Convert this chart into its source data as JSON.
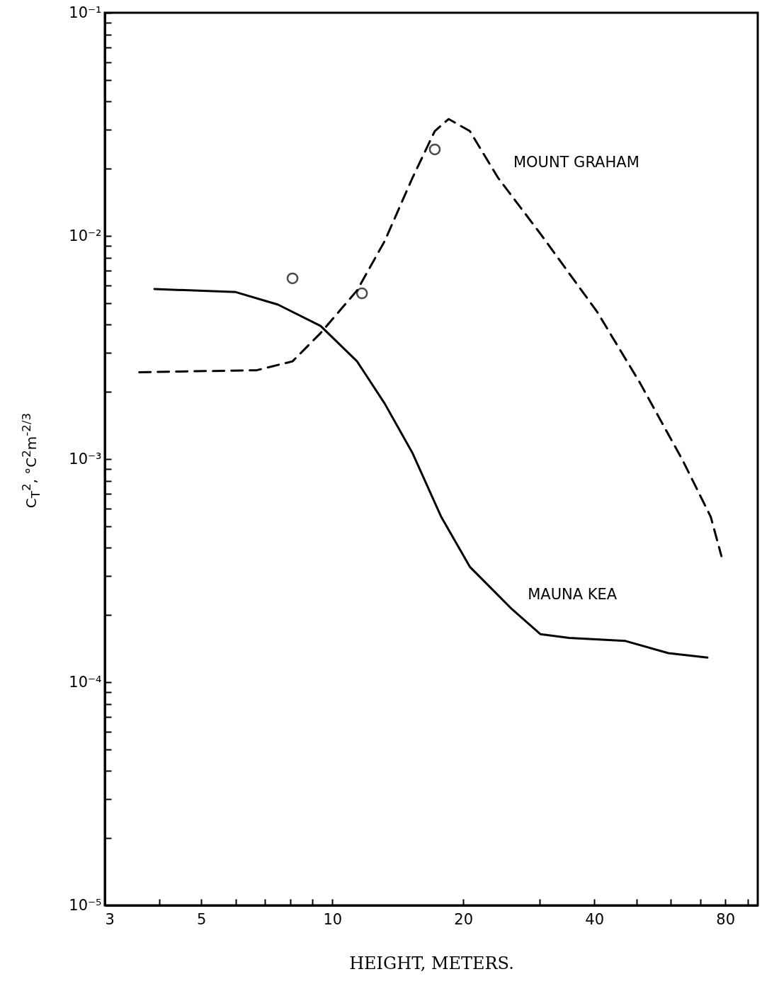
{
  "chart_data": {
    "type": "line",
    "xlabel": "HEIGHT, METERS.",
    "ylabel": "C$_{T}$$^{2}$, °C$^{2}$m$^{-2/3}$",
    "log": "xy",
    "xlim": [
      3,
      95
    ],
    "ylim": [
      1e-05,
      0.1
    ],
    "xticks": [
      3,
      {
        "value": 4,
        "label": null
      },
      5,
      {
        "value": 6,
        "label": null
      },
      {
        "value": 7,
        "label": null
      },
      {
        "value": 8,
        "label": null
      },
      {
        "value": 9,
        "label": null
      },
      10,
      20,
      {
        "value": 30,
        "label": null
      },
      40,
      {
        "value": 50,
        "label": null
      },
      {
        "value": 60,
        "label": null
      },
      {
        "value": 70,
        "label": null
      },
      80,
      {
        "value": 90,
        "label": null
      }
    ],
    "yticks": [
      {
        "value": 1e-05,
        "label": "10⁻⁵"
      },
      {
        "value": 2e-05,
        "label": null
      },
      {
        "value": 3e-05,
        "label": null
      },
      {
        "value": 4e-05,
        "label": null
      },
      {
        "value": 5e-05,
        "label": null
      },
      {
        "value": 6e-05,
        "label": null
      },
      {
        "value": 7e-05,
        "label": null
      },
      {
        "value": 8e-05,
        "label": null
      },
      {
        "value": 9e-05,
        "label": null
      },
      {
        "value": 0.0001,
        "label": "10⁻⁴"
      },
      {
        "value": 0.0002,
        "label": null
      },
      {
        "value": 0.0003,
        "label": null
      },
      {
        "value": 0.0004,
        "label": null
      },
      {
        "value": 0.0005,
        "label": null
      },
      {
        "value": 0.0006,
        "label": null
      },
      {
        "value": 0.0007,
        "label": null
      },
      {
        "value": 0.0008,
        "label": null
      },
      {
        "value": 0.0009,
        "label": null
      },
      {
        "value": 0.001,
        "label": "10⁻³"
      },
      {
        "value": 0.002,
        "label": null
      },
      {
        "value": 0.003,
        "label": null
      },
      {
        "value": 0.004,
        "label": null
      },
      {
        "value": 0.005,
        "label": null
      },
      {
        "value": 0.006,
        "label": null
      },
      {
        "value": 0.007,
        "label": null
      },
      {
        "value": 0.008,
        "label": null
      },
      {
        "value": 0.009,
        "label": null
      },
      {
        "value": 0.01,
        "label": "10⁻²"
      },
      {
        "value": 0.02,
        "label": null
      },
      {
        "value": 0.03,
        "label": null
      },
      {
        "value": 0.04,
        "label": null
      },
      {
        "value": 0.05,
        "label": null
      },
      {
        "value": 0.06,
        "label": null
      },
      {
        "value": 0.07,
        "label": null
      },
      {
        "value": 0.08,
        "label": null
      },
      {
        "value": 0.09,
        "label": null
      },
      {
        "value": 0.1,
        "label": "10⁻¹"
      }
    ],
    "series": [
      {
        "name": "MAUNA KEA",
        "line_style": "solid",
        "color": "#000000",
        "x": [
          3.9,
          6.0,
          7.5,
          9.4,
          11.4,
          13.2,
          15.3,
          17.8,
          20.7,
          25.9,
          30.1,
          35.0,
          47.2,
          59.2,
          72.8
        ],
        "values": [
          0.00578,
          0.0056,
          0.00492,
          0.00395,
          0.00274,
          0.00177,
          0.00106,
          0.00055,
          0.000329,
          0.000212,
          0.000164,
          0.000158,
          0.000153,
          0.000135,
          0.000129
        ]
      },
      {
        "name": "MOUNT GRAHAM",
        "line_style": "dashed",
        "color": "#000000",
        "x": [
          3.6,
          6.7,
          8.1,
          9.4,
          11.4,
          13.2,
          15.3,
          17.2,
          18.5,
          20.7,
          24.0,
          30.1,
          40.6,
          50.9,
          63.8,
          74.1,
          78.4
        ],
        "values": [
          0.00245,
          0.0025,
          0.00274,
          0.00367,
          0.0057,
          0.0095,
          0.0183,
          0.0295,
          0.0334,
          0.0295,
          0.0183,
          0.0102,
          0.00457,
          0.0022,
          0.00099,
          0.00055,
          0.000367
        ]
      },
      {
        "type": "scatter",
        "marker": "circle",
        "color": "#000000",
        "x": [
          8.1,
          11.7,
          17.2
        ],
        "values": [
          0.00645,
          0.00553,
          0.0244
        ]
      }
    ]
  }
}
